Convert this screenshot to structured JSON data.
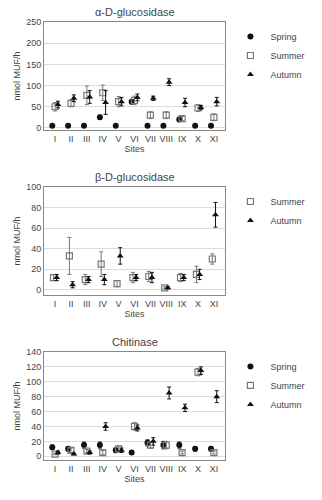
{
  "chart_data": [
    {
      "type": "scatter",
      "title": "α-D-glucosidase",
      "xlabel": "Sites",
      "ylabel": "nmol MUF/h",
      "categories": [
        "I",
        "II",
        "III",
        "IV",
        "V",
        "VI",
        "VII",
        "VIII",
        "IX",
        "X",
        "XI"
      ],
      "series": [
        {
          "name": "Spring",
          "color": "#111111",
          "marker": "circle",
          "values": [
            5,
            5,
            5,
            25,
            5,
            62,
            5,
            5,
            20,
            5,
            5
          ],
          "errors": [
            3,
            3,
            3,
            5,
            3,
            5,
            3,
            3,
            5,
            3,
            3
          ]
        },
        {
          "name": "Summer",
          "color": "#777777",
          "marker": "square-open",
          "values": [
            50,
            58,
            77,
            83,
            62,
            65,
            30,
            30,
            22,
            47,
            25
          ],
          "errors": [
            10,
            8,
            22,
            18,
            12,
            10,
            8,
            8,
            5,
            8,
            8
          ]
        },
        {
          "name": "Autumn",
          "color": "#111111",
          "marker": "triangle-up",
          "values": [
            55,
            70,
            73,
            60,
            62,
            72,
            70,
            108,
            60,
            48,
            62
          ],
          "errors": [
            8,
            8,
            15,
            28,
            10,
            8,
            5,
            8,
            10,
            5,
            10
          ]
        }
      ],
      "ylim": [
        -5,
        250
      ],
      "yticks": [
        0,
        50,
        100,
        150,
        200,
        250
      ],
      "grid": true,
      "legend": "right"
    },
    {
      "type": "scatter",
      "title": "β-D-glucosidase",
      "xlabel": "Sites",
      "ylabel": "nmol MUF/h",
      "categories": [
        "I",
        "II",
        "III",
        "IV",
        "V",
        "VI",
        "VII",
        "VIII",
        "IX",
        "X",
        "XI"
      ],
      "series": [
        {
          "name": "Summer",
          "color": "#777777",
          "marker": "square-open",
          "values": [
            12,
            33,
            10,
            25,
            6,
            12,
            13,
            2,
            12,
            15,
            30
          ],
          "errors": [
            3,
            18,
            5,
            12,
            3,
            5,
            5,
            1,
            4,
            8,
            5
          ]
        },
        {
          "name": "Autumn",
          "color": "#111111",
          "marker": "triangle-up",
          "values": [
            12,
            5,
            10,
            10,
            33,
            12,
            12,
            2,
            12,
            15,
            73
          ],
          "errors": [
            3,
            3,
            3,
            5,
            8,
            3,
            5,
            1,
            3,
            5,
            12
          ]
        }
      ],
      "ylim": [
        -5,
        100
      ],
      "yticks": [
        0,
        20,
        40,
        60,
        80,
        100
      ],
      "grid": true,
      "legend": "right"
    },
    {
      "type": "scatter",
      "title": "Chitinase",
      "xlabel": "Sites",
      "ylabel": "nmol MUF/h",
      "categories": [
        "I",
        "II",
        "III",
        "IV",
        "V",
        "VI",
        "VII",
        "VIII",
        "IX",
        "X",
        "XI"
      ],
      "series": [
        {
          "name": "Spring",
          "color": "#111111",
          "marker": "circle",
          "values": [
            12,
            10,
            15,
            15,
            8,
            5,
            18,
            15,
            15,
            10,
            10
          ],
          "errors": [
            3,
            3,
            4,
            4,
            3,
            2,
            4,
            5,
            4,
            3,
            3
          ]
        },
        {
          "name": "Summer",
          "color": "#777777",
          "marker": "square-open",
          "values": [
            3,
            8,
            7,
            5,
            10,
            40,
            15,
            15,
            5,
            113,
            5
          ],
          "errors": [
            1,
            3,
            2,
            3,
            4,
            5,
            4,
            5,
            2,
            5,
            2
          ]
        },
        {
          "name": "Autumn",
          "color": "#111111",
          "marker": "triangle-up",
          "values": [
            5,
            3,
            5,
            40,
            8,
            38,
            20,
            85,
            65,
            115,
            80
          ],
          "errors": [
            2,
            1,
            2,
            5,
            3,
            4,
            5,
            8,
            5,
            5,
            8
          ]
        }
      ],
      "ylim": [
        -5,
        140
      ],
      "yticks": [
        0,
        20,
        40,
        60,
        80,
        100,
        120,
        140
      ],
      "grid": true,
      "legend": "right"
    }
  ]
}
